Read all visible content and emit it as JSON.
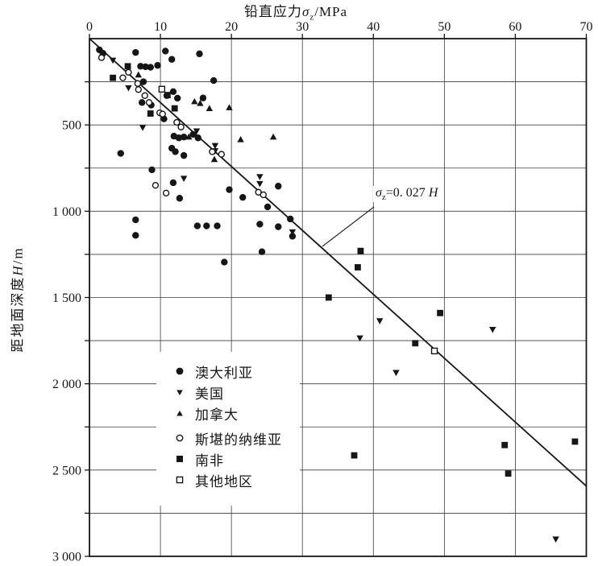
{
  "figure": {
    "background": "#ffffff",
    "ink": "#161616",
    "grid_color": "#3c3c3c"
  },
  "chart_data": {
    "type": "scatter",
    "title": "",
    "x_axis": {
      "title_prefix": "铅直应力",
      "title_symbol": "σ",
      "title_sub": "z",
      "title_suffix": "/MPa",
      "position": "top",
      "range": [
        0,
        70
      ],
      "ticks": [
        0,
        10,
        20,
        30,
        40,
        50,
        60,
        70
      ]
    },
    "y_axis": {
      "title_prefix": "距地面深度",
      "title_symbol": "H",
      "title_suffix": "/m",
      "position": "left",
      "range": [
        0,
        3000
      ],
      "inverted": true,
      "grid_step": 250,
      "tick_labels": [
        [
          500,
          "500"
        ],
        [
          1000,
          "1 000"
        ],
        [
          1500,
          "1 500"
        ],
        [
          2000,
          "2 000"
        ],
        [
          2500,
          "2 500"
        ],
        [
          3000,
          "3 000"
        ]
      ]
    },
    "grid": true,
    "trend_line": {
      "slope": 0.027,
      "eq_symbol": "σ",
      "eq_sub": "z",
      "eq_mid": "=0. 027 ",
      "eq_var": "H",
      "from": [
        0,
        0
      ],
      "to_sigma": 70
    },
    "annotation_leader": {
      "from_point": [
        40.1,
        975
      ],
      "to_point": [
        32.8,
        1204
      ]
    },
    "series": [
      {
        "key": "australia",
        "name": "澳大利亚",
        "marker": "circle-filled",
        "points": [
          [
            1.4,
            65
          ],
          [
            1.9,
            85
          ],
          [
            6.5,
            80
          ],
          [
            10.7,
            72
          ],
          [
            11.6,
            120
          ],
          [
            15.5,
            88
          ],
          [
            7.2,
            160
          ],
          [
            7.9,
            163
          ],
          [
            8.6,
            166
          ],
          [
            9.6,
            155
          ],
          [
            7.6,
            250
          ],
          [
            17.5,
            243
          ],
          [
            10.9,
            330
          ],
          [
            11.8,
            307
          ],
          [
            12.4,
            345
          ],
          [
            16.0,
            344
          ],
          [
            7.4,
            370
          ],
          [
            8.7,
            385
          ],
          [
            10.5,
            465
          ],
          [
            4.4,
            665
          ],
          [
            8.8,
            760
          ],
          [
            11.9,
            565
          ],
          [
            12.6,
            575
          ],
          [
            13.3,
            570
          ],
          [
            14.6,
            555
          ],
          [
            15.3,
            575
          ],
          [
            11.6,
            635
          ],
          [
            12.1,
            655
          ],
          [
            13.3,
            677
          ],
          [
            11.8,
            835
          ],
          [
            12.7,
            925
          ],
          [
            19.7,
            875
          ],
          [
            21.6,
            920
          ],
          [
            25.1,
            975
          ],
          [
            26.6,
            855
          ],
          [
            28.3,
            1045
          ],
          [
            26.6,
            1090
          ],
          [
            28.6,
            1145
          ],
          [
            24.0,
            1075
          ],
          [
            24.3,
            1235
          ],
          [
            19.0,
            1295
          ],
          [
            6.5,
            1050
          ],
          [
            6.5,
            1140
          ],
          [
            15.2,
            1085
          ],
          [
            16.5,
            1085
          ],
          [
            18.0,
            1085
          ]
        ]
      },
      {
        "key": "usa",
        "name": "美国",
        "marker": "triangle-down-filled",
        "points": [
          [
            3.3,
            125
          ],
          [
            5.5,
            285
          ],
          [
            7.5,
            515
          ],
          [
            15.1,
            535
          ],
          [
            17.7,
            620
          ],
          [
            17.7,
            650
          ],
          [
            13.3,
            810
          ],
          [
            24.0,
            800
          ],
          [
            24.0,
            840
          ],
          [
            28.6,
            1120
          ],
          [
            40.9,
            1635
          ],
          [
            38.1,
            1735
          ],
          [
            43.2,
            1935
          ],
          [
            56.8,
            1685
          ],
          [
            65.7,
            2900
          ]
        ]
      },
      {
        "key": "canada",
        "name": "加拿大",
        "marker": "triangle-up-filled",
        "points": [
          [
            6.9,
            210
          ],
          [
            14.0,
            570
          ],
          [
            14.8,
            365
          ],
          [
            15.6,
            375
          ],
          [
            16.9,
            405
          ],
          [
            19.7,
            400
          ],
          [
            17.6,
            700
          ],
          [
            21.3,
            585
          ],
          [
            25.9,
            570
          ]
        ]
      },
      {
        "key": "scandinavia",
        "name": "斯堪的纳维亚",
        "marker": "circle-open",
        "points": [
          [
            1.7,
            110
          ],
          [
            5.5,
            195
          ],
          [
            4.7,
            227
          ],
          [
            6.8,
            260
          ],
          [
            6.9,
            295
          ],
          [
            7.8,
            330
          ],
          [
            8.4,
            370
          ],
          [
            9.9,
            430
          ],
          [
            10.3,
            437
          ],
          [
            12.3,
            485
          ],
          [
            12.9,
            512
          ],
          [
            17.3,
            655
          ],
          [
            18.6,
            670
          ],
          [
            9.3,
            850
          ],
          [
            10.8,
            895
          ],
          [
            23.8,
            890
          ],
          [
            24.5,
            905
          ]
        ]
      },
      {
        "key": "south-africa",
        "name": "南非",
        "marker": "square-filled",
        "points": [
          [
            5.4,
            160
          ],
          [
            3.3,
            227
          ],
          [
            11.0,
            327
          ],
          [
            12.0,
            404
          ],
          [
            8.6,
            434
          ],
          [
            33.7,
            1500
          ],
          [
            37.8,
            1325
          ],
          [
            38.2,
            1230
          ],
          [
            49.4,
            1590
          ],
          [
            45.9,
            1765
          ],
          [
            37.3,
            2415
          ],
          [
            58.5,
            2355
          ],
          [
            59.0,
            2520
          ],
          [
            68.4,
            2335
          ]
        ]
      },
      {
        "key": "other-regions",
        "name": "其他地区",
        "marker": "square-open",
        "points": [
          [
            10.2,
            293
          ],
          [
            48.6,
            1810
          ]
        ]
      }
    ],
    "legend_position": "inside-lower-left"
  }
}
